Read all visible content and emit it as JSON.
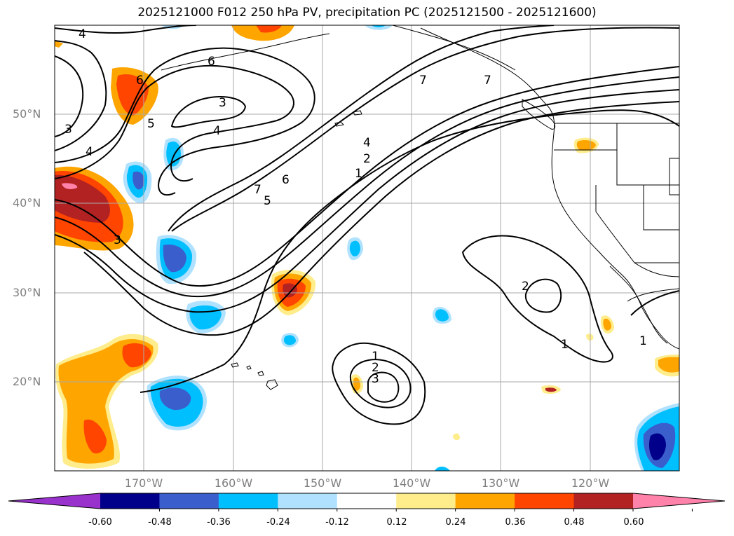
{
  "title": "2025121000 F012 250 hPa PV, precipitation PC (2025121500 - 2025121600)",
  "lat_labels": [
    "50°N",
    "40°N",
    "30°N",
    "20°N"
  ],
  "lon_labels": [
    "170°W",
    "160°W",
    "150°W",
    "140°W",
    "130°W",
    "120°W"
  ],
  "colorbar": {
    "ticks": [
      "-0.60",
      "-0.48",
      "-0.36",
      "-0.24",
      "-0.12",
      "0.12",
      "0.24",
      "0.36",
      "0.48",
      "0.60"
    ],
    "colors": [
      "#9932cc",
      "#00008b",
      "#3a5fcd",
      "#00bfff",
      "#b0e2ff",
      "#ffffff",
      "#ffec8b",
      "#ffa500",
      "#ff4500",
      "#b22222",
      "#ff82ab"
    ]
  },
  "contour_labels": [
    "4",
    "6",
    "3",
    "4",
    "5",
    "3",
    "4",
    "6",
    "7",
    "5",
    "3",
    "6",
    "4",
    "2",
    "1",
    "7",
    "7",
    "2",
    "1",
    "1",
    "1",
    "2",
    "3"
  ]
}
